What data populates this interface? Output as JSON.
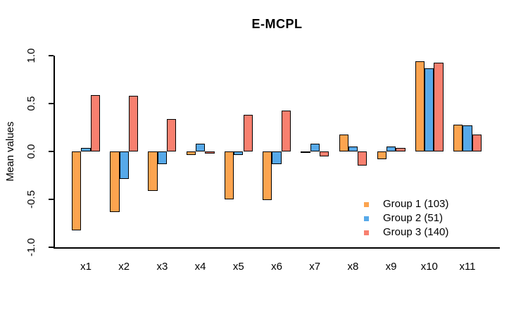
{
  "chart_data": {
    "type": "bar",
    "title": "E-MCPL",
    "xlabel": "",
    "ylabel": "Mean values",
    "categories": [
      "x1",
      "x2",
      "x3",
      "x4",
      "x5",
      "x6",
      "x7",
      "x8",
      "x9",
      "x10",
      "x11"
    ],
    "series": [
      {
        "name": "Group 1 (103)",
        "color": "#FCA44F",
        "values": [
          -0.82,
          -0.63,
          -0.41,
          -0.04,
          -0.5,
          -0.51,
          -0.01,
          0.18,
          -0.08,
          0.94,
          0.28
        ]
      },
      {
        "name": "Group 2 (51)",
        "color": "#57A9E9",
        "values": [
          0.04,
          -0.29,
          -0.13,
          0.08,
          -0.04,
          -0.13,
          0.08,
          0.05,
          0.05,
          0.87,
          0.27
        ]
      },
      {
        "name": "Group 3 (140)",
        "color": "#F8806F",
        "values": [
          0.59,
          0.58,
          0.34,
          -0.02,
          0.38,
          0.43,
          -0.05,
          -0.15,
          0.04,
          0.93,
          0.18
        ]
      }
    ],
    "ylim": [
      -1.0,
      1.0
    ],
    "yticks": [
      -1.0,
      -0.5,
      0.0,
      0.5,
      1.0
    ],
    "ytick_labels": [
      "-1.0",
      "-0.5",
      "0.0",
      "0.5",
      "1.0"
    ],
    "grid": false,
    "legend_position": "inside-bottom-right",
    "bar_border_color": "#000000",
    "axis_color": "#000000",
    "background_color": "#ffffff"
  }
}
